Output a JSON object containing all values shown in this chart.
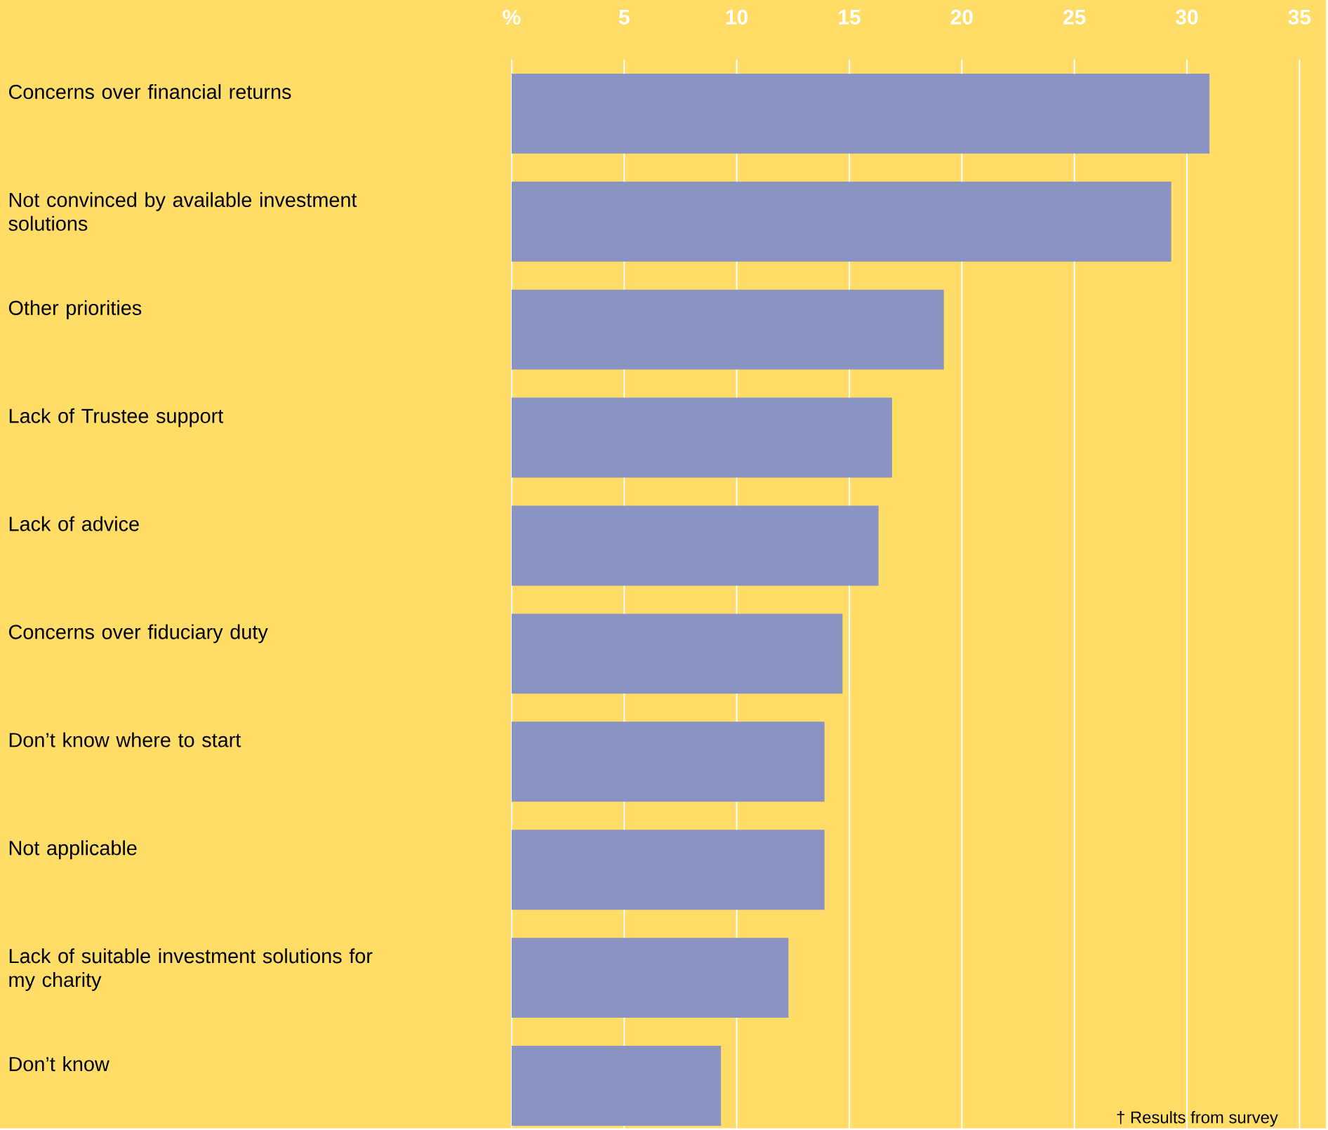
{
  "chart_data": {
    "type": "bar",
    "orientation": "horizontal",
    "categories": [
      "Concerns over financial returns",
      "Not convinced by available investment solutions",
      "Other priorities",
      "Lack of Trustee support",
      "Lack of advice",
      "Concerns over fiduciary duty",
      "Don’t know where to start",
      "Not applicable",
      "Lack of suitable investment solutions for my charity",
      "Don’t know"
    ],
    "values": [
      31,
      29.3,
      19.2,
      16.9,
      16.3,
      14.7,
      13.9,
      13.9,
      12.3,
      9.3
    ],
    "color": "#8a93c2",
    "xlim": [
      0,
      36
    ],
    "xticks": [
      {
        "value": 0,
        "label": "%"
      },
      5,
      10,
      15,
      20,
      25,
      30,
      35
    ],
    "grid": "x",
    "annotations": [
      "† Results from survey"
    ]
  }
}
